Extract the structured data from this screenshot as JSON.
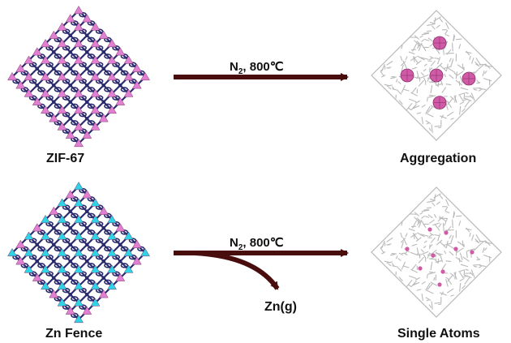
{
  "top_row": {
    "left_label": "ZIF-67",
    "condition_gas": "N",
    "condition_sub": "2",
    "condition_temp": ", 800℃",
    "right_label": "Aggregation"
  },
  "bottom_row": {
    "left_label": "Zn Fence",
    "condition_gas": "N",
    "condition_sub": "2",
    "condition_temp": ", 800℃",
    "byproduct": "Zn(g)",
    "right_label": "Single Atoms"
  },
  "colors": {
    "arrow": "#4a0d0d",
    "linker": "#2a2a6e",
    "co_node": "#e17fd0",
    "zn_node": "#2fd3e6",
    "carbon": "#b9b9b9",
    "cluster": "#d05aa5"
  }
}
